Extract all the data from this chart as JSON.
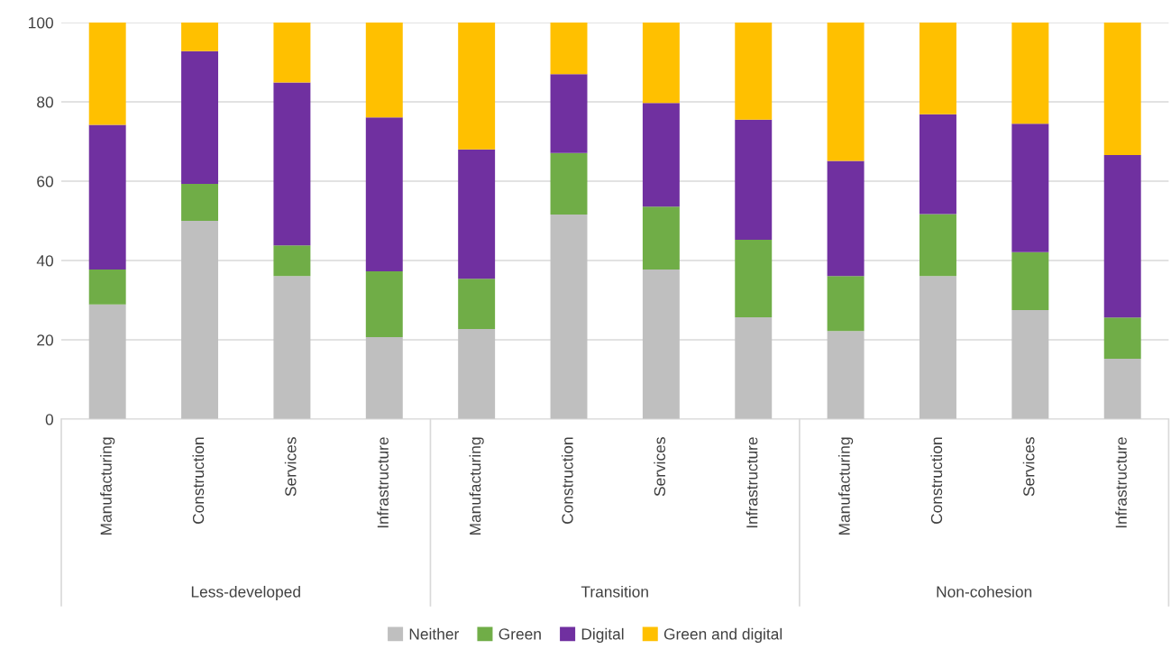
{
  "chart_data": {
    "type": "bar",
    "stacked": true,
    "categories": [
      "Manufacturing",
      "Construction",
      "Services",
      "Infrastructure",
      "Manufacturing",
      "Construction",
      "Services",
      "Infrastructure",
      "Manufacturing",
      "Construction",
      "Services",
      "Infrastructure"
    ],
    "annotations": [
      "Less-developed",
      "Transition",
      "Non-cohesion"
    ],
    "series": [
      {
        "name": "Neither",
        "color": "#bfbfbf",
        "values": [
          28.9,
          50.0,
          36.1,
          20.7,
          22.7,
          51.6,
          37.7,
          25.7,
          22.2,
          36.1,
          27.5,
          15.2
        ]
      },
      {
        "name": "Green",
        "color": "#70ad47",
        "values": [
          8.8,
          9.3,
          7.7,
          16.6,
          12.7,
          15.5,
          15.9,
          19.5,
          13.9,
          15.6,
          14.6,
          10.4
        ]
      },
      {
        "name": "Digital",
        "color": "#7030a0",
        "values": [
          36.5,
          33.5,
          41.1,
          38.8,
          32.6,
          19.9,
          26.1,
          30.3,
          29.0,
          25.2,
          32.4,
          41.0
        ]
      },
      {
        "name": "Green and digital",
        "color": "#ffc000",
        "values": [
          25.8,
          7.2,
          15.1,
          23.9,
          32.0,
          13.0,
          20.3,
          24.5,
          34.9,
          23.1,
          25.5,
          33.4
        ]
      }
    ],
    "ylim": [
      0,
      100
    ],
    "yticks": [
      0,
      20,
      40,
      60,
      80,
      100
    ],
    "grid": "y",
    "legend": "bottom"
  }
}
